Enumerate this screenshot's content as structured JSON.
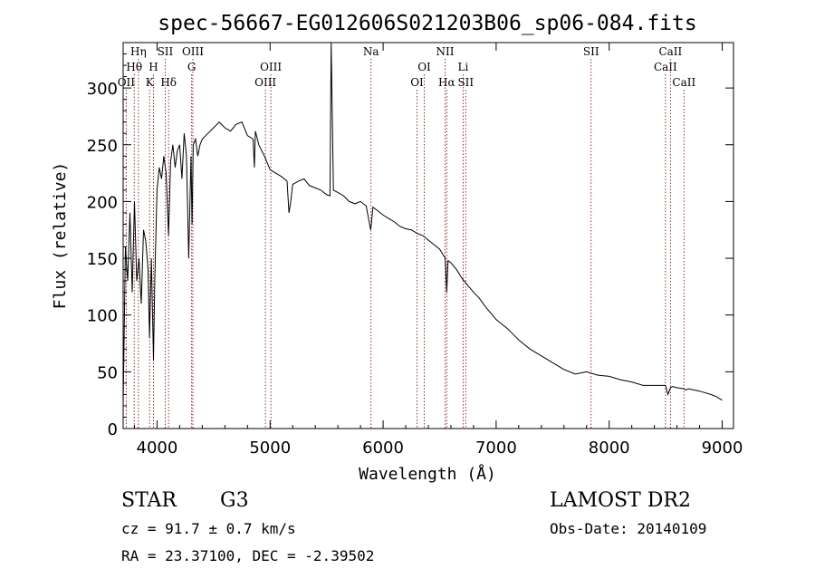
{
  "chart_data": {
    "type": "line",
    "title": "spec-56667-EG012606S021203B06_sp06-084.fits",
    "xlabel": "Wavelength (Å)",
    "ylabel": "Flux (relative)",
    "xlim": [
      3700,
      9100
    ],
    "ylim": [
      0,
      340
    ],
    "xticks": [
      4000,
      5000,
      6000,
      7000,
      8000,
      9000
    ],
    "yticks": [
      0,
      50,
      100,
      150,
      200,
      250,
      300
    ],
    "grid": false,
    "line_color": "#000000",
    "marker_color": "#8b1a1a",
    "series": [
      {
        "x": [
          3700,
          3720,
          3740,
          3760,
          3780,
          3800,
          3820,
          3840,
          3860,
          3880,
          3900,
          3920,
          3933,
          3950,
          3968,
          3980,
          4000,
          4020,
          4040,
          4060,
          4080,
          4101,
          4120,
          4140,
          4160,
          4180,
          4200,
          4220,
          4240,
          4260,
          4280,
          4300,
          4310,
          4320,
          4340,
          4360,
          4380,
          4400,
          4450,
          4500,
          4550,
          4600,
          4650,
          4700,
          4750,
          4800,
          4850,
          4861,
          4870,
          4900,
          4950,
          5000,
          5050,
          5100,
          5150,
          5167,
          5183,
          5200,
          5250,
          5300,
          5350,
          5400,
          5450,
          5500,
          5530,
          5540,
          5560,
          5600,
          5650,
          5700,
          5750,
          5800,
          5850,
          5890,
          5896,
          5910,
          5950,
          6000,
          6050,
          6100,
          6150,
          6200,
          6250,
          6300,
          6350,
          6400,
          6450,
          6500,
          6550,
          6563,
          6575,
          6600,
          6650,
          6700,
          6750,
          6800,
          6850,
          6900,
          6950,
          7000,
          7100,
          7200,
          7300,
          7400,
          7500,
          7600,
          7700,
          7800,
          7900,
          8000,
          8100,
          8200,
          8300,
          8400,
          8498,
          8520,
          8542,
          8560,
          8600,
          8662,
          8680,
          8700,
          8800,
          8900,
          8950,
          9000
        ],
        "y": [
          20,
          160,
          130,
          190,
          120,
          200,
          130,
          150,
          110,
          175,
          165,
          140,
          80,
          150,
          60,
          130,
          210,
          230,
          220,
          240,
          225,
          170,
          235,
          250,
          230,
          245,
          250,
          220,
          260,
          240,
          150,
          240,
          180,
          250,
          255,
          240,
          250,
          255,
          260,
          265,
          270,
          265,
          262,
          268,
          270,
          258,
          255,
          230,
          262,
          250,
          240,
          228,
          225,
          222,
          218,
          190,
          200,
          215,
          218,
          220,
          214,
          212,
          210,
          206,
          205,
          340,
          210,
          208,
          205,
          200,
          198,
          200,
          196,
          175,
          180,
          195,
          192,
          188,
          185,
          182,
          178,
          176,
          175,
          172,
          170,
          166,
          162,
          158,
          150,
          120,
          148,
          146,
          140,
          132,
          126,
          120,
          115,
          108,
          102,
          96,
          88,
          78,
          70,
          64,
          58,
          52,
          48,
          50,
          47,
          46,
          43,
          41,
          38,
          38,
          38,
          30,
          36,
          37,
          36,
          35,
          34,
          35,
          33,
          30,
          28,
          25
        ]
      }
    ],
    "lines": [
      {
        "label": "OII",
        "wavelength": 3727,
        "row": 3
      },
      {
        "label": "Hθ",
        "wavelength": 3798,
        "row": 2
      },
      {
        "label": "Hη",
        "wavelength": 3835,
        "row": 1
      },
      {
        "label": "K",
        "wavelength": 3934,
        "row": 3
      },
      {
        "label": "H",
        "wavelength": 3968,
        "row": 2
      },
      {
        "label": "SII",
        "wavelength": 4072,
        "row": 1
      },
      {
        "label": "Hδ",
        "wavelength": 4102,
        "row": 3
      },
      {
        "label": "OIII",
        "wavelength": 4317,
        "row": 1
      },
      {
        "label": "G",
        "wavelength": 4306,
        "row": 2
      },
      {
        "label": "OIII",
        "wavelength": 4959,
        "row": 3
      },
      {
        "label": "OIII",
        "wavelength": 5007,
        "row": 2
      },
      {
        "label": "Na",
        "wavelength": 5893,
        "row": 1
      },
      {
        "label": "OI",
        "wavelength": 6300,
        "row": 3
      },
      {
        "label": "OI",
        "wavelength": 6364,
        "row": 2
      },
      {
        "label": "NII",
        "wavelength": 6548,
        "row": 1
      },
      {
        "label": "Hα",
        "wavelength": 6563,
        "row": 3
      },
      {
        "label": "Li",
        "wavelength": 6708,
        "row": 2
      },
      {
        "label": "SII",
        "wavelength": 6731,
        "row": 3
      },
      {
        "label": "SII",
        "wavelength": 7840,
        "row": 1
      },
      {
        "label": "CaII",
        "wavelength": 8498,
        "row": 2
      },
      {
        "label": "CaII",
        "wavelength": 8542,
        "row": 1
      },
      {
        "label": "CaII",
        "wavelength": 8662,
        "row": 3
      }
    ]
  },
  "info": {
    "object_class": "STAR",
    "subclass": "G3",
    "survey": "LAMOST DR2",
    "redshift": "cz = 91.7 ± 0.7 km/s",
    "obs_date": "Obs-Date: 20140109",
    "coords": "RA =  23.37100, DEC =  -2.39502"
  }
}
